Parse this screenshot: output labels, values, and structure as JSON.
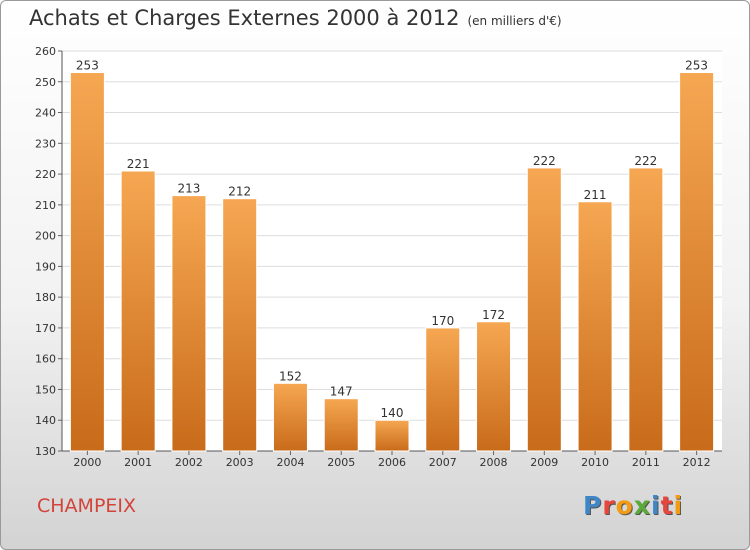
{
  "header": {
    "title": "Achats et Charges Externes 2000 à 2012",
    "unit": "(en milliers d'€)"
  },
  "footer": {
    "commune": "CHAMPEIX",
    "brand": "Proxiti"
  },
  "colors": {
    "bar_light": "#f6a752",
    "bar_dark": "#c86b1a",
    "grid": "#dddddd",
    "commune_text": "#d2443a",
    "brand_letters": [
      "#3f86c6",
      "#e8453c",
      "#f39c12",
      "#5aaa3a",
      "#3f86c6",
      "#e8453c",
      "#f39c12"
    ]
  },
  "chart_data": {
    "type": "bar",
    "categories": [
      "2000",
      "2001",
      "2002",
      "2003",
      "2004",
      "2005",
      "2006",
      "2007",
      "2008",
      "2009",
      "2010",
      "2011",
      "2012"
    ],
    "values": [
      253,
      221,
      213,
      212,
      152,
      147,
      140,
      170,
      172,
      222,
      211,
      222,
      253
    ],
    "ylim": [
      130,
      260
    ],
    "yticks": [
      130,
      140,
      150,
      160,
      170,
      180,
      190,
      200,
      210,
      220,
      230,
      240,
      250,
      260
    ],
    "grid": true,
    "data_labels": true
  }
}
